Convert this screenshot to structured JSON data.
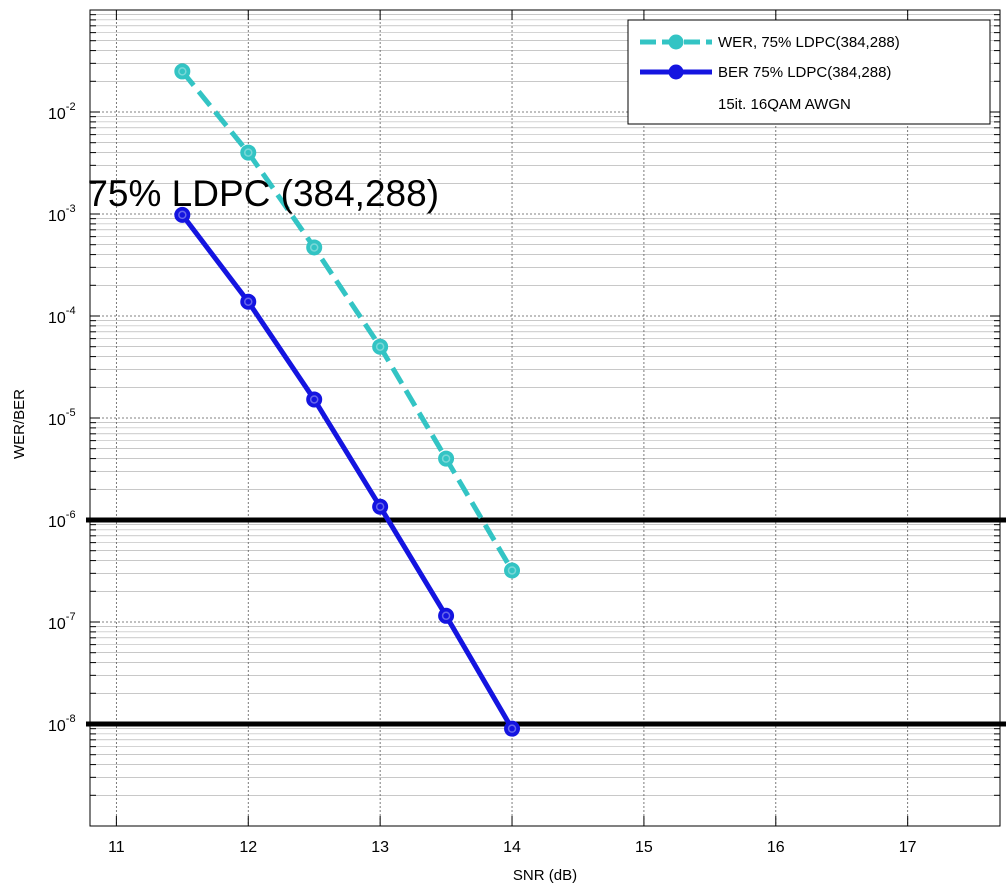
{
  "chart_data": {
    "type": "line",
    "title": "",
    "xlabel": "SNR (dB)",
    "ylabel": "WER/BER",
    "xlim": [
      10.8,
      17.7
    ],
    "ylim": [
      1e-09,
      0.1
    ],
    "y_scale": "log",
    "grid": true,
    "grid_minor": true,
    "x_ticks": [
      11,
      12,
      13,
      14,
      15,
      16,
      17
    ],
    "y_ticks": [
      {
        "value": 1e-08,
        "base": "10",
        "exp": "-8"
      },
      {
        "value": 1e-07,
        "base": "10",
        "exp": "-7"
      },
      {
        "value": 1e-06,
        "base": "10",
        "exp": "-6"
      },
      {
        "value": 1e-05,
        "base": "10",
        "exp": "-5"
      },
      {
        "value": 0.0001,
        "base": "10",
        "exp": "-4"
      },
      {
        "value": 0.001,
        "base": "10",
        "exp": "-3"
      },
      {
        "value": 0.01,
        "base": "10",
        "exp": "-2"
      }
    ],
    "reference_lines": [
      1e-06,
      1e-08
    ],
    "series": [
      {
        "name": "WER, 75% LDPC(384,288)",
        "color": "#33c4c4",
        "style": "dashed",
        "marker": "circle",
        "x": [
          11.5,
          12,
          12.5,
          13,
          13.5,
          14
        ],
        "y": [
          0.025,
          0.004,
          0.00047,
          5e-05,
          4e-06,
          3.2e-07
        ]
      },
      {
        "name": "BER 75% LDPC(384,288)",
        "color": "#1414e0",
        "style": "solid",
        "marker": "circle",
        "x": [
          11.5,
          12,
          12.5,
          13,
          13.5,
          14
        ],
        "y": [
          0.00098,
          0.000138,
          1.52e-05,
          1.35e-06,
          1.15e-07,
          9e-09
        ]
      }
    ],
    "legend": {
      "placement": "top-right",
      "note": "15it. 16QAM AWGN"
    },
    "annotations": [
      {
        "text": "75% LDPC (384,288)",
        "x": 11.5,
        "y": 0.001
      }
    ]
  }
}
